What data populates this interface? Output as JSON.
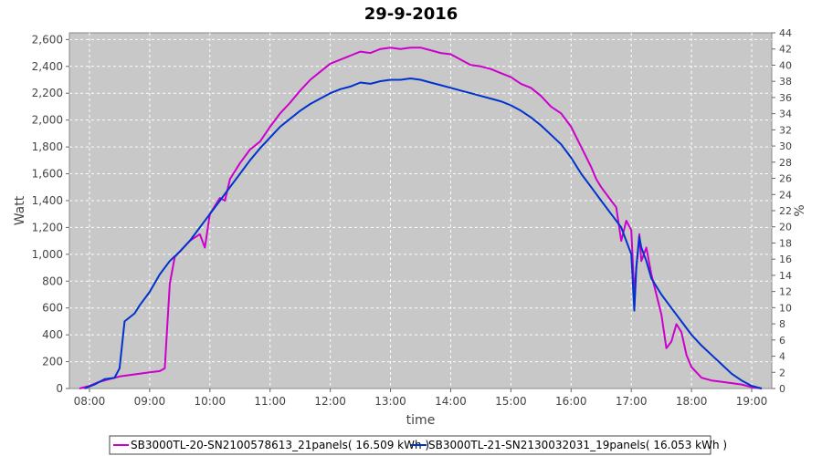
{
  "chart_data": {
    "type": "line",
    "title": "29-9-2016",
    "xlabel": "time",
    "ylabel": "Watt",
    "y2label": "%",
    "xlim": [
      "07:40",
      "19:20"
    ],
    "ylim": [
      0,
      2650
    ],
    "y2lim": [
      0,
      44
    ],
    "x_ticks": [
      "08:00",
      "09:00",
      "10:00",
      "11:00",
      "12:00",
      "13:00",
      "14:00",
      "15:00",
      "16:00",
      "17:00",
      "18:00",
      "19:00"
    ],
    "y_ticks": [
      "0",
      "200",
      "400",
      "600",
      "800",
      "1,000",
      "1,200",
      "1,400",
      "1,600",
      "1,800",
      "2,000",
      "2,200",
      "2,400",
      "2,600"
    ],
    "y2_ticks": [
      "0",
      "2",
      "4",
      "6",
      "8",
      "10",
      "12",
      "14",
      "16",
      "18",
      "20",
      "22",
      "24",
      "26",
      "28",
      "30",
      "32",
      "34",
      "36",
      "38",
      "40",
      "42",
      "44"
    ],
    "grid": true,
    "background": "#c8c8c8",
    "legend_position": "bottom",
    "series": [
      {
        "name": "SB3000TL-20-SN2100578613_21panels( 16.509 kWh )",
        "color": "#cc00cc",
        "x": [
          "07:50",
          "08:00",
          "08:10",
          "08:20",
          "08:30",
          "08:40",
          "08:50",
          "09:00",
          "09:10",
          "09:15",
          "09:20",
          "09:25",
          "09:30",
          "09:40",
          "09:50",
          "09:55",
          "10:00",
          "10:10",
          "10:15",
          "10:20",
          "10:30",
          "10:40",
          "10:50",
          "11:00",
          "11:10",
          "11:20",
          "11:30",
          "11:40",
          "11:50",
          "12:00",
          "12:10",
          "12:20",
          "12:30",
          "12:40",
          "12:50",
          "13:00",
          "13:10",
          "13:20",
          "13:30",
          "13:40",
          "13:50",
          "14:00",
          "14:10",
          "14:20",
          "14:30",
          "14:40",
          "14:50",
          "15:00",
          "15:10",
          "15:20",
          "15:30",
          "15:40",
          "15:50",
          "16:00",
          "16:10",
          "16:20",
          "16:25",
          "16:30",
          "16:40",
          "16:45",
          "16:50",
          "16:55",
          "17:00",
          "17:03",
          "17:05",
          "17:08",
          "17:10",
          "17:15",
          "17:20",
          "17:30",
          "17:35",
          "17:40",
          "17:45",
          "17:50",
          "17:55",
          "18:00",
          "18:05",
          "18:10",
          "18:20",
          "18:30",
          "18:40",
          "18:50",
          "19:00",
          "19:10"
        ],
        "y": [
          0,
          20,
          50,
          70,
          90,
          100,
          110,
          120,
          130,
          150,
          780,
          980,
          1020,
          1100,
          1150,
          1050,
          1300,
          1420,
          1400,
          1560,
          1680,
          1780,
          1840,
          1950,
          2050,
          2130,
          2220,
          2300,
          2360,
          2420,
          2450,
          2480,
          2510,
          2500,
          2530,
          2540,
          2530,
          2540,
          2540,
          2520,
          2500,
          2490,
          2450,
          2410,
          2400,
          2380,
          2350,
          2320,
          2270,
          2240,
          2180,
          2100,
          2050,
          1950,
          1800,
          1650,
          1560,
          1500,
          1400,
          1350,
          1100,
          1250,
          1180,
          700,
          900,
          1150,
          950,
          1050,
          850,
          550,
          300,
          350,
          480,
          420,
          250,
          160,
          120,
          80,
          60,
          50,
          40,
          30,
          10,
          0
        ]
      },
      {
        "name": "SB3000TL-21-SN2130032031_19panels( 16.053 kWh )",
        "color": "#0033cc",
        "x": [
          "07:55",
          "08:05",
          "08:15",
          "08:25",
          "08:30",
          "08:35",
          "08:40",
          "08:45",
          "08:50",
          "09:00",
          "09:10",
          "09:20",
          "09:30",
          "09:40",
          "09:50",
          "10:00",
          "10:10",
          "10:20",
          "10:30",
          "10:40",
          "10:50",
          "11:00",
          "11:10",
          "11:20",
          "11:30",
          "11:40",
          "11:50",
          "12:00",
          "12:10",
          "12:20",
          "12:30",
          "12:40",
          "12:50",
          "13:00",
          "13:10",
          "13:20",
          "13:30",
          "13:40",
          "13:50",
          "14:00",
          "14:10",
          "14:20",
          "14:30",
          "14:40",
          "14:50",
          "15:00",
          "15:10",
          "15:20",
          "15:30",
          "15:40",
          "15:50",
          "16:00",
          "16:10",
          "16:20",
          "16:30",
          "16:40",
          "16:50",
          "17:00",
          "17:03",
          "17:05",
          "17:08",
          "17:10",
          "17:15",
          "17:20",
          "17:30",
          "17:40",
          "17:50",
          "18:00",
          "18:10",
          "18:20",
          "18:30",
          "18:40",
          "18:50",
          "19:00",
          "19:10"
        ],
        "y": [
          0,
          30,
          70,
          80,
          150,
          500,
          530,
          560,
          620,
          720,
          850,
          950,
          1020,
          1100,
          1200,
          1300,
          1400,
          1500,
          1600,
          1700,
          1790,
          1870,
          1950,
          2010,
          2070,
          2120,
          2160,
          2200,
          2230,
          2250,
          2280,
          2270,
          2290,
          2300,
          2300,
          2310,
          2300,
          2280,
          2260,
          2240,
          2220,
          2200,
          2180,
          2160,
          2140,
          2110,
          2070,
          2020,
          1960,
          1890,
          1820,
          1720,
          1600,
          1500,
          1400,
          1300,
          1200,
          1000,
          580,
          900,
          1130,
          1050,
          950,
          820,
          700,
          600,
          500,
          400,
          320,
          250,
          180,
          110,
          60,
          20,
          0
        ]
      }
    ]
  }
}
